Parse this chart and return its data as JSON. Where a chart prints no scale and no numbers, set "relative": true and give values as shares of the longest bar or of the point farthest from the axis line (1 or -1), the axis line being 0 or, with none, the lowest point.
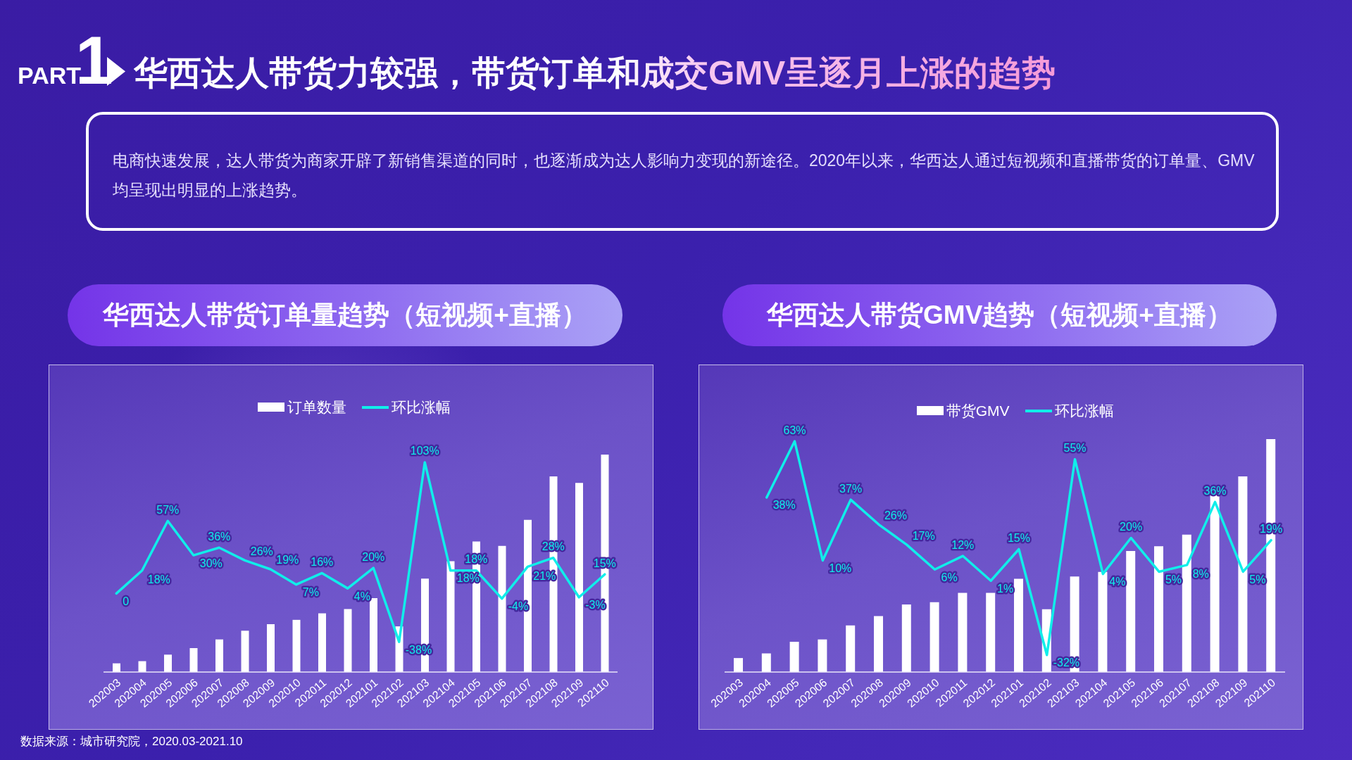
{
  "chart_data": [
    {
      "type": "other",
      "title": "华西达人带货力较强，带货订单和成交GMV呈逐月上涨的趋势",
      "subtitle": "电商快速发展，达人带货为商家开辟了新销售渠道的同时，也逐渐成为达人影响力变现的新途径。2020年以来，华西达人通过短视频和直播带货的订单量、GMV均呈现出明显的上涨趋势。",
      "annotations": [
        "PART1",
        "数据来源：城市研究院，2020.03-2021.10"
      ]
    },
    {
      "type": "bar",
      "title": "华西达人带货订单量趋势（短视频+直播）",
      "relative": true,
      "legend": "top",
      "categories": [
        "202003",
        "202004",
        "202005",
        "202006",
        "202007",
        "202008",
        "202009",
        "202010",
        "202011",
        "202012",
        "202101",
        "202102",
        "202103",
        "202104",
        "202105",
        "202106",
        "202107",
        "202108",
        "202109",
        "202110"
      ],
      "series": [
        {
          "name": "订单数量",
          "color": "#ffffff",
          "values": [
            0.04,
            0.05,
            0.08,
            0.11,
            0.15,
            0.19,
            0.22,
            0.24,
            0.27,
            0.29,
            0.34,
            0.21,
            0.43,
            0.51,
            0.6,
            0.58,
            0.7,
            0.9,
            0.87,
            1
          ]
        }
      ]
    },
    {
      "type": "line",
      "legend": "top",
      "categories": [
        null,
        null,
        null,
        null,
        null,
        null,
        null,
        null,
        null,
        null,
        null,
        null,
        null,
        null,
        null,
        null,
        null,
        null,
        null,
        null
      ],
      "series": [
        {
          "name": "环比涨幅",
          "color": "#10eeea",
          "values": [
            0,
            18,
            57,
            30,
            36,
            26,
            19,
            7,
            16,
            4,
            20,
            -38,
            103,
            18,
            18,
            -4,
            21,
            28,
            -3,
            15
          ],
          "value_labels": [
            "0",
            "18%",
            "57%",
            "30%",
            "36%",
            "26%",
            "19%",
            "7%",
            "16%",
            "4%",
            "20%",
            "-38%",
            "103%",
            "18%",
            "18%",
            "-4%",
            "21%",
            "28%",
            "-3%",
            "15%"
          ]
        }
      ]
    },
    {
      "type": "bar",
      "title": "华西达人带货GMV趋势（短视频+直播）",
      "relative": true,
      "legend": "top",
      "categories": [
        "202003",
        "202004",
        "202005",
        "202006",
        "202007",
        "202008",
        "202009",
        "202010",
        "202011",
        "202012",
        "202101",
        "202102",
        "202103",
        "202104",
        "202105",
        "202106",
        "202107",
        "202108",
        "202109",
        "202110"
      ],
      "series": [
        {
          "name": "带货GMV",
          "color": "#ffffff",
          "values": [
            0.06,
            0.08,
            0.13,
            0.14,
            0.2,
            0.24,
            0.29,
            0.3,
            0.34,
            0.34,
            0.4,
            0.27,
            0.41,
            0.43,
            0.52,
            0.54,
            0.59,
            0.8,
            0.84,
            1
          ]
        }
      ]
    },
    {
      "type": "line",
      "legend": "top",
      "categories": [
        null,
        null,
        null,
        null,
        null,
        null,
        null,
        null,
        null,
        null,
        null,
        null,
        null,
        null,
        null,
        null,
        null,
        null,
        null,
        null
      ],
      "series": [
        {
          "name": "环比涨幅",
          "color": "#10eeea",
          "values": [
            null,
            38,
            63,
            10,
            37,
            26,
            17,
            6,
            12,
            1,
            15,
            -32,
            55,
            4,
            20,
            5,
            8,
            36,
            5,
            19
          ],
          "value_labels": [
            null,
            "38%",
            "63%",
            "10%",
            "37%",
            "26%",
            "17%",
            "6%",
            "12%",
            "1%",
            "15%",
            "-32%",
            "55%",
            "4%",
            "20%",
            "5%",
            "8%",
            "36%",
            "5%",
            "19%"
          ]
        }
      ]
    }
  ]
}
